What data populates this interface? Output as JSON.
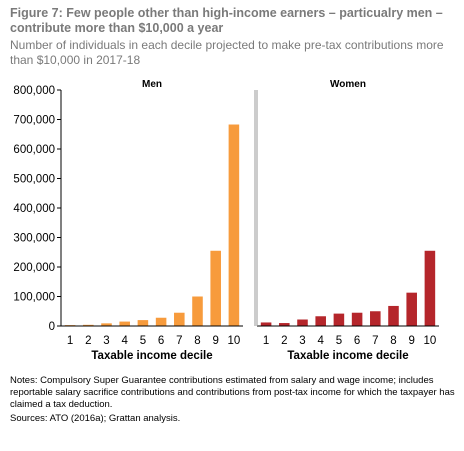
{
  "figure": {
    "title": "Figure 7: Few people other than high-income earners – particualry men – contribute more than $10,000 a year",
    "subtitle": "Number of individuals in each decile projected to make pre-tax contributions more than $10,000 in 2017-18",
    "notes": "Notes: Compulsory Super Guarantee contributions estimated from salary and wage income; includes reportable salary sacrifice contributions and contributions from post-tax income for which the taxpayer has claimed a tax deduction.",
    "sources": "Sources: ATO (2016a); Grattan analysis."
  },
  "colors": {
    "men": "#f79b3c",
    "women": "#b5262b",
    "axis": "#000000",
    "divider": "#999999",
    "title": "#7a7a7a"
  },
  "chart_data": [
    {
      "type": "bar",
      "title": "Men",
      "xlabel": "Taxable income decile",
      "ylabel": "",
      "ylim": [
        0,
        800000
      ],
      "yticks": [
        0,
        100000,
        200000,
        300000,
        400000,
        500000,
        600000,
        700000,
        800000
      ],
      "ytick_labels": [
        "0",
        "100,000",
        "200,000",
        "300,000",
        "400,000",
        "500,000",
        "600,000",
        "700,000",
        "800,000"
      ],
      "categories": [
        "1",
        "2",
        "3",
        "4",
        "5",
        "6",
        "7",
        "8",
        "9",
        "10"
      ],
      "values": [
        3000,
        4000,
        9000,
        15000,
        20000,
        28000,
        45000,
        100000,
        255000,
        683000
      ],
      "color": "#f79b3c",
      "grid": false
    },
    {
      "type": "bar",
      "title": "Women",
      "xlabel": "Taxable income decile",
      "ylabel": "",
      "ylim": [
        0,
        800000
      ],
      "categories": [
        "1",
        "2",
        "3",
        "4",
        "5",
        "6",
        "7",
        "8",
        "9",
        "10"
      ],
      "values": [
        12000,
        10000,
        22000,
        33000,
        42000,
        45000,
        50000,
        68000,
        113000,
        255000
      ],
      "color": "#b5262b",
      "grid": false
    }
  ]
}
